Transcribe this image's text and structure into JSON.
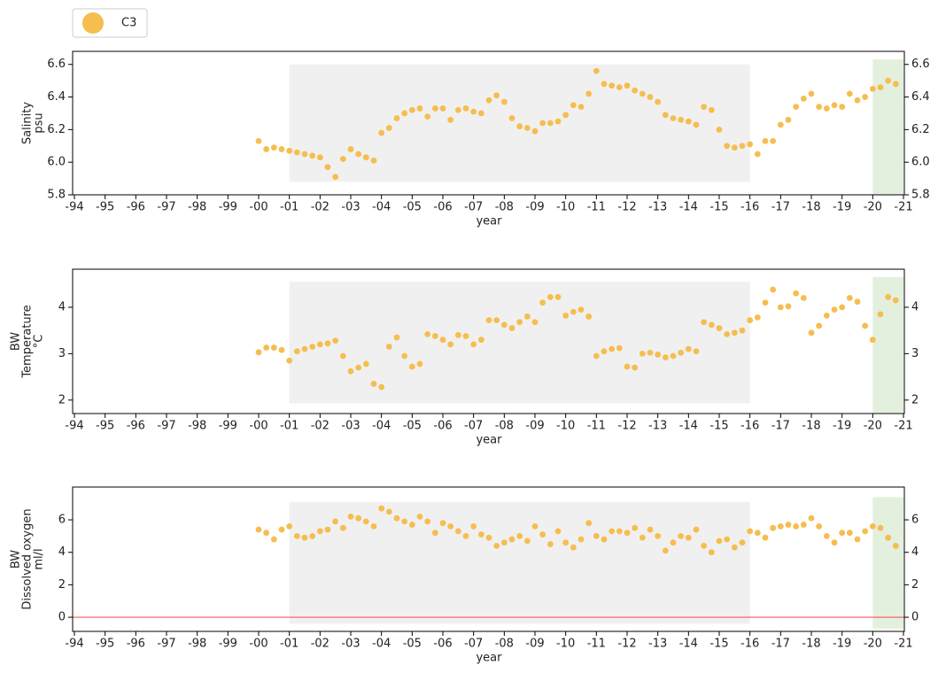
{
  "chart_data": [
    {
      "type": "scatter",
      "ylabel": [
        "Salinity",
        "psu"
      ],
      "xlabel": "year",
      "xlim": [
        1994,
        2021
      ],
      "ylim": [
        5.8,
        6.68
      ],
      "xticks": [
        {
          "value": 1994,
          "label": "-94"
        },
        {
          "value": 1995,
          "label": "-95"
        },
        {
          "value": 1996,
          "label": "-96"
        },
        {
          "value": 1997,
          "label": "-97"
        },
        {
          "value": 1998,
          "label": "-98"
        },
        {
          "value": 1999,
          "label": "-99"
        },
        {
          "value": 2000,
          "label": "-00"
        },
        {
          "value": 2001,
          "label": "-01"
        },
        {
          "value": 2002,
          "label": "-02"
        },
        {
          "value": 2003,
          "label": "-03"
        },
        {
          "value": 2004,
          "label": "-04"
        },
        {
          "value": 2005,
          "label": "-05"
        },
        {
          "value": 2006,
          "label": "-06"
        },
        {
          "value": 2007,
          "label": "-07"
        },
        {
          "value": 2008,
          "label": "-08"
        },
        {
          "value": 2009,
          "label": "-09"
        },
        {
          "value": 2010,
          "label": "-10"
        },
        {
          "value": 2011,
          "label": "-11"
        },
        {
          "value": 2012,
          "label": "-12"
        },
        {
          "value": 2013,
          "label": "-13"
        },
        {
          "value": 2014,
          "label": "-14"
        },
        {
          "value": 2015,
          "label": "-15"
        },
        {
          "value": 2016,
          "label": "-16"
        },
        {
          "value": 2017,
          "label": "-17"
        },
        {
          "value": 2018,
          "label": "-18"
        },
        {
          "value": 2019,
          "label": "-19"
        },
        {
          "value": 2020,
          "label": "-20"
        },
        {
          "value": 2021,
          "label": "-21"
        }
      ],
      "yticks": [
        5.8,
        {
          "value": 6,
          "label": "6.0"
        },
        6.2,
        6.4,
        6.6
      ],
      "spans": [
        {
          "x": [
            2001,
            2016
          ],
          "y": [
            5.88,
            6.6
          ],
          "color": "#f0f0f0"
        },
        {
          "x": [
            2020,
            2021
          ],
          "y": [
            5.8,
            6.63
          ],
          "color": "#e3f0de"
        }
      ],
      "x": [
        2000,
        2000.25,
        2000.5,
        2000.75,
        2001,
        2001.25,
        2001.5,
        2001.75,
        2002,
        2002.25,
        2002.5,
        2002.75,
        2003,
        2003.25,
        2003.5,
        2003.75,
        2004,
        2004.25,
        2004.5,
        2004.75,
        2005,
        2005.25,
        2005.5,
        2005.75,
        2006,
        2006.25,
        2006.5,
        2006.75,
        2007,
        2007.25,
        2007.5,
        2007.75,
        2008,
        2008.25,
        2008.5,
        2008.75,
        2009,
        2009.25,
        2009.5,
        2009.75,
        2010,
        2010.25,
        2010.5,
        2010.75,
        2011,
        2011.25,
        2011.5,
        2011.75,
        2012,
        2012.25,
        2012.5,
        2012.75,
        2013,
        2013.25,
        2013.5,
        2013.75,
        2014,
        2014.25,
        2014.5,
        2014.75,
        2015,
        2015.25,
        2015.5,
        2015.75,
        2016,
        2016.25,
        2016.5,
        2016.75,
        2017,
        2017.25,
        2017.5,
        2017.75,
        2018,
        2018.25,
        2018.5,
        2018.75,
        2019,
        2019.25,
        2019.5,
        2019.75,
        2020,
        2020.25,
        2020.5,
        2020.75
      ],
      "series": [
        {
          "name": "C3",
          "color": "#f6bd4f",
          "values": [
            6.13,
            6.08,
            6.09,
            6.08,
            6.07,
            6.06,
            6.05,
            6.04,
            6.03,
            5.97,
            5.91,
            6.02,
            6.08,
            6.05,
            6.03,
            6.01,
            6.18,
            6.21,
            6.27,
            6.3,
            6.32,
            6.33,
            6.28,
            6.33,
            6.33,
            6.26,
            6.32,
            6.33,
            6.31,
            6.3,
            6.38,
            6.41,
            6.37,
            6.27,
            6.22,
            6.21,
            6.19,
            6.24,
            6.24,
            6.25,
            6.29,
            6.35,
            6.34,
            6.42,
            6.56,
            6.48,
            6.47,
            6.46,
            6.47,
            6.44,
            6.42,
            6.4,
            6.37,
            6.29,
            6.27,
            6.26,
            6.25,
            6.23,
            6.34,
            6.32,
            6.2,
            6.1,
            6.09,
            6.1,
            6.11,
            6.05,
            6.13,
            6.13,
            6.23,
            6.26,
            6.34,
            6.39,
            6.42,
            6.34,
            6.33,
            6.35,
            6.34,
            6.42,
            6.38,
            6.4,
            6.45,
            6.46,
            6.5,
            6.48
          ]
        }
      ]
    },
    {
      "type": "scatter",
      "ylabel": [
        "BW",
        "Temperature",
        "°C"
      ],
      "xlabel": "year",
      "xlim": [
        1994,
        2021
      ],
      "ylim": [
        1.71,
        4.82
      ],
      "xticks": [
        {
          "value": 1994,
          "label": "-94"
        },
        {
          "value": 1995,
          "label": "-95"
        },
        {
          "value": 1996,
          "label": "-96"
        },
        {
          "value": 1997,
          "label": "-97"
        },
        {
          "value": 1998,
          "label": "-98"
        },
        {
          "value": 1999,
          "label": "-99"
        },
        {
          "value": 2000,
          "label": "-00"
        },
        {
          "value": 2001,
          "label": "-01"
        },
        {
          "value": 2002,
          "label": "-02"
        },
        {
          "value": 2003,
          "label": "-03"
        },
        {
          "value": 2004,
          "label": "-04"
        },
        {
          "value": 2005,
          "label": "-05"
        },
        {
          "value": 2006,
          "label": "-06"
        },
        {
          "value": 2007,
          "label": "-07"
        },
        {
          "value": 2008,
          "label": "-08"
        },
        {
          "value": 2009,
          "label": "-09"
        },
        {
          "value": 2010,
          "label": "-10"
        },
        {
          "value": 2011,
          "label": "-11"
        },
        {
          "value": 2012,
          "label": "-12"
        },
        {
          "value": 2013,
          "label": "-13"
        },
        {
          "value": 2014,
          "label": "-14"
        },
        {
          "value": 2015,
          "label": "-15"
        },
        {
          "value": 2016,
          "label": "-16"
        },
        {
          "value": 2017,
          "label": "-17"
        },
        {
          "value": 2018,
          "label": "-18"
        },
        {
          "value": 2019,
          "label": "-19"
        },
        {
          "value": 2020,
          "label": "-20"
        },
        {
          "value": 2021,
          "label": "-21"
        }
      ],
      "yticks": [
        2,
        3,
        4
      ],
      "spans": [
        {
          "x": [
            2001,
            2016
          ],
          "y": [
            1.93,
            4.55
          ],
          "color": "#f0f0f0"
        },
        {
          "x": [
            2020,
            2021
          ],
          "y": [
            1.73,
            4.65
          ],
          "color": "#e3f0de"
        }
      ],
      "x": [
        2000,
        2000.25,
        2000.5,
        2000.75,
        2001,
        2001.25,
        2001.5,
        2001.75,
        2002,
        2002.25,
        2002.5,
        2002.75,
        2003,
        2003.25,
        2003.5,
        2003.75,
        2004,
        2004.25,
        2004.5,
        2004.75,
        2005,
        2005.25,
        2005.5,
        2005.75,
        2006,
        2006.25,
        2006.5,
        2006.75,
        2007,
        2007.25,
        2007.5,
        2007.75,
        2008,
        2008.25,
        2008.5,
        2008.75,
        2009,
        2009.25,
        2009.5,
        2009.75,
        2010,
        2010.25,
        2010.5,
        2010.75,
        2011,
        2011.25,
        2011.5,
        2011.75,
        2012,
        2012.25,
        2012.5,
        2012.75,
        2013,
        2013.25,
        2013.5,
        2013.75,
        2014,
        2014.25,
        2014.5,
        2014.75,
        2015,
        2015.25,
        2015.5,
        2015.75,
        2016,
        2016.25,
        2016.5,
        2016.75,
        2017,
        2017.25,
        2017.5,
        2017.75,
        2018,
        2018.25,
        2018.5,
        2018.75,
        2019,
        2019.25,
        2019.5,
        2019.75,
        2020,
        2020.25,
        2020.5,
        2020.75
      ],
      "series": [
        {
          "name": "C3",
          "color": "#f6bd4f",
          "values": [
            3.03,
            3.13,
            3.13,
            3.08,
            2.85,
            3.05,
            3.1,
            3.15,
            3.2,
            3.22,
            3.28,
            2.95,
            2.62,
            2.7,
            2.78,
            2.35,
            2.28,
            3.15,
            3.35,
            2.95,
            2.72,
            2.78,
            3.42,
            3.38,
            3.3,
            3.2,
            3.4,
            3.38,
            3.2,
            3.3,
            3.72,
            3.72,
            3.62,
            3.55,
            3.68,
            3.8,
            3.68,
            4.1,
            4.22,
            4.22,
            3.82,
            3.9,
            3.95,
            3.8,
            2.95,
            3.05,
            3.1,
            3.12,
            2.72,
            2.7,
            3.0,
            3.02,
            2.98,
            2.92,
            2.95,
            3.02,
            3.1,
            3.05,
            3.68,
            3.62,
            3.55,
            3.42,
            3.45,
            3.5,
            3.72,
            3.78,
            4.1,
            4.38,
            4.0,
            4.02,
            4.3,
            4.2,
            3.45,
            3.6,
            3.82,
            3.95,
            4.0,
            4.2,
            4.12,
            3.6,
            3.3,
            3.85,
            4.22,
            4.15
          ]
        }
      ]
    },
    {
      "type": "scatter",
      "ylabel": [
        "BW",
        "Dissolved oxygen",
        "ml/l"
      ],
      "xlabel": "year",
      "xlim": [
        1994,
        2021
      ],
      "ylim": [
        -0.87,
        8.02
      ],
      "xticks": [
        {
          "value": 1994,
          "label": "-94"
        },
        {
          "value": 1995,
          "label": "-95"
        },
        {
          "value": 1996,
          "label": "-96"
        },
        {
          "value": 1997,
          "label": "-97"
        },
        {
          "value": 1998,
          "label": "-98"
        },
        {
          "value": 1999,
          "label": "-99"
        },
        {
          "value": 2000,
          "label": "-00"
        },
        {
          "value": 2001,
          "label": "-01"
        },
        {
          "value": 2002,
          "label": "-02"
        },
        {
          "value": 2003,
          "label": "-03"
        },
        {
          "value": 2004,
          "label": "-04"
        },
        {
          "value": 2005,
          "label": "-05"
        },
        {
          "value": 2006,
          "label": "-06"
        },
        {
          "value": 2007,
          "label": "-07"
        },
        {
          "value": 2008,
          "label": "-08"
        },
        {
          "value": 2009,
          "label": "-09"
        },
        {
          "value": 2010,
          "label": "-10"
        },
        {
          "value": 2011,
          "label": "-11"
        },
        {
          "value": 2012,
          "label": "-12"
        },
        {
          "value": 2013,
          "label": "-13"
        },
        {
          "value": 2014,
          "label": "-14"
        },
        {
          "value": 2015,
          "label": "-15"
        },
        {
          "value": 2016,
          "label": "-16"
        },
        {
          "value": 2017,
          "label": "-17"
        },
        {
          "value": 2018,
          "label": "-18"
        },
        {
          "value": 2019,
          "label": "-19"
        },
        {
          "value": 2020,
          "label": "-20"
        },
        {
          "value": 2021,
          "label": "-21"
        }
      ],
      "yticks": [
        0,
        2,
        4,
        6
      ],
      "hline": {
        "value": 0,
        "color": "#ff5555"
      },
      "spans": [
        {
          "x": [
            2001,
            2016
          ],
          "y": [
            -0.4,
            7.1
          ],
          "color": "#f0f0f0"
        },
        {
          "x": [
            2020,
            2021
          ],
          "y": [
            -0.7,
            7.4
          ],
          "color": "#e3f0de"
        }
      ],
      "x": [
        2000,
        2000.25,
        2000.5,
        2000.75,
        2001,
        2001.25,
        2001.5,
        2001.75,
        2002,
        2002.25,
        2002.5,
        2002.75,
        2003,
        2003.25,
        2003.5,
        2003.75,
        2004,
        2004.25,
        2004.5,
        2004.75,
        2005,
        2005.25,
        2005.5,
        2005.75,
        2006,
        2006.25,
        2006.5,
        2006.75,
        2007,
        2007.25,
        2007.5,
        2007.75,
        2008,
        2008.25,
        2008.5,
        2008.75,
        2009,
        2009.25,
        2009.5,
        2009.75,
        2010,
        2010.25,
        2010.5,
        2010.75,
        2011,
        2011.25,
        2011.5,
        2011.75,
        2012,
        2012.25,
        2012.5,
        2012.75,
        2013,
        2013.25,
        2013.5,
        2013.75,
        2014,
        2014.25,
        2014.5,
        2014.75,
        2015,
        2015.25,
        2015.5,
        2015.75,
        2016,
        2016.25,
        2016.5,
        2016.75,
        2017,
        2017.25,
        2017.5,
        2017.75,
        2018,
        2018.25,
        2018.5,
        2018.75,
        2019,
        2019.25,
        2019.5,
        2019.75,
        2020,
        2020.25,
        2020.5,
        2020.75
      ],
      "series": [
        {
          "name": "C3",
          "color": "#f6bd4f",
          "values": [
            5.4,
            5.2,
            4.8,
            5.4,
            5.6,
            5.0,
            4.9,
            5.0,
            5.3,
            5.4,
            5.9,
            5.5,
            6.2,
            6.1,
            5.9,
            5.6,
            6.7,
            6.5,
            6.1,
            5.9,
            5.7,
            6.2,
            5.9,
            5.2,
            5.8,
            5.6,
            5.3,
            5.0,
            5.6,
            5.1,
            4.9,
            4.4,
            4.6,
            4.8,
            5.0,
            4.7,
            5.6,
            5.1,
            4.5,
            5.3,
            4.6,
            4.3,
            4.8,
            5.8,
            5.0,
            4.8,
            5.3,
            5.3,
            5.2,
            5.5,
            4.9,
            5.4,
            5.0,
            4.1,
            4.6,
            5.0,
            4.9,
            5.4,
            4.4,
            4.0,
            4.7,
            4.8,
            4.3,
            4.6,
            5.3,
            5.2,
            4.9,
            5.5,
            5.6,
            5.7,
            5.6,
            5.7,
            6.1,
            5.6,
            5.0,
            4.6,
            5.2,
            5.2,
            4.8,
            5.3,
            5.6,
            5.5,
            4.9,
            4.4
          ]
        }
      ]
    }
  ]
}
